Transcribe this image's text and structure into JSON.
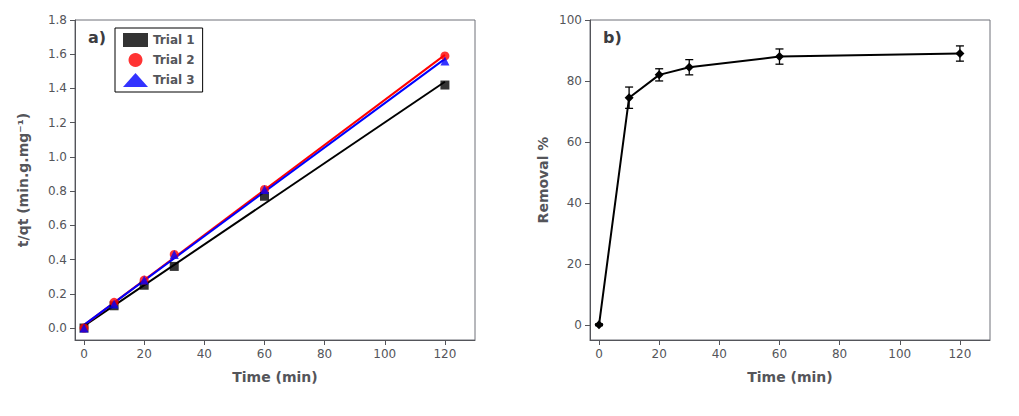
{
  "chart_data": [
    {
      "type": "scatter",
      "title": "a)",
      "xlabel": "Time (min)",
      "ylabel": "t/qt (min.g.mg⁻¹)",
      "series": [
        {
          "name": "Trial 1",
          "color": "black",
          "marker": "square",
          "x": [
            0,
            10,
            20,
            30,
            60,
            120
          ],
          "values": [
            0.0,
            0.13,
            0.25,
            0.36,
            0.77,
            1.42
          ],
          "fit": {
            "x": [
              0,
              120
            ],
            "y": [
              0.012823,
              1.439354
            ]
          }
        },
        {
          "name": "Trial 2",
          "color": "red",
          "marker": "circle",
          "x": [
            0,
            10,
            20,
            30,
            60,
            120
          ],
          "values": [
            0.0,
            0.15,
            0.28,
            0.43,
            0.81,
            1.59
          ],
          "fit": {
            "x": [
              0,
              120
            ],
            "y": [
              0.016803,
              1.596395
            ]
          }
        },
        {
          "name": "Trial 3",
          "color": "blue",
          "marker": "triangle",
          "x": [
            0,
            10,
            20,
            30,
            60,
            120
          ],
          "values": [
            0.0,
            0.14,
            0.28,
            0.43,
            0.81,
            1.56
          ],
          "fit": {
            "x": [
              0,
              120
            ],
            "y": [
              0.018707,
              1.572585
            ]
          }
        }
      ],
      "xlim": [
        -3,
        130
      ],
      "xticks": [
        0,
        20,
        40,
        60,
        80,
        100,
        120
      ],
      "ylim": [
        -0.07,
        1.8
      ],
      "yticks": [
        {
          "value": 0.0,
          "label": "0.0"
        },
        0.2,
        0.4,
        0.6,
        0.8,
        {
          "value": 1.0,
          "label": "1.0"
        },
        1.2,
        1.4,
        1.6,
        1.8
      ],
      "grid": false,
      "legend": "upper left"
    },
    {
      "type": "line",
      "title": "b)",
      "xlabel": "Time (min)",
      "ylabel": "Removal %",
      "x": [
        0,
        10,
        20,
        30,
        60,
        120
      ],
      "values": [
        0.0,
        74.5,
        82.0,
        84.5,
        88.0,
        89.0
      ],
      "yerr": [
        0.3,
        3.5,
        2.0,
        2.5,
        2.5,
        2.5
      ],
      "color": "black",
      "marker": "diamond",
      "xlim": [
        -3,
        130
      ],
      "xticks": [
        0,
        20,
        40,
        60,
        80,
        100,
        120
      ],
      "ylim": [
        -5,
        100
      ],
      "yticks": [
        0,
        20,
        40,
        60,
        80,
        100
      ],
      "grid": false
    }
  ]
}
